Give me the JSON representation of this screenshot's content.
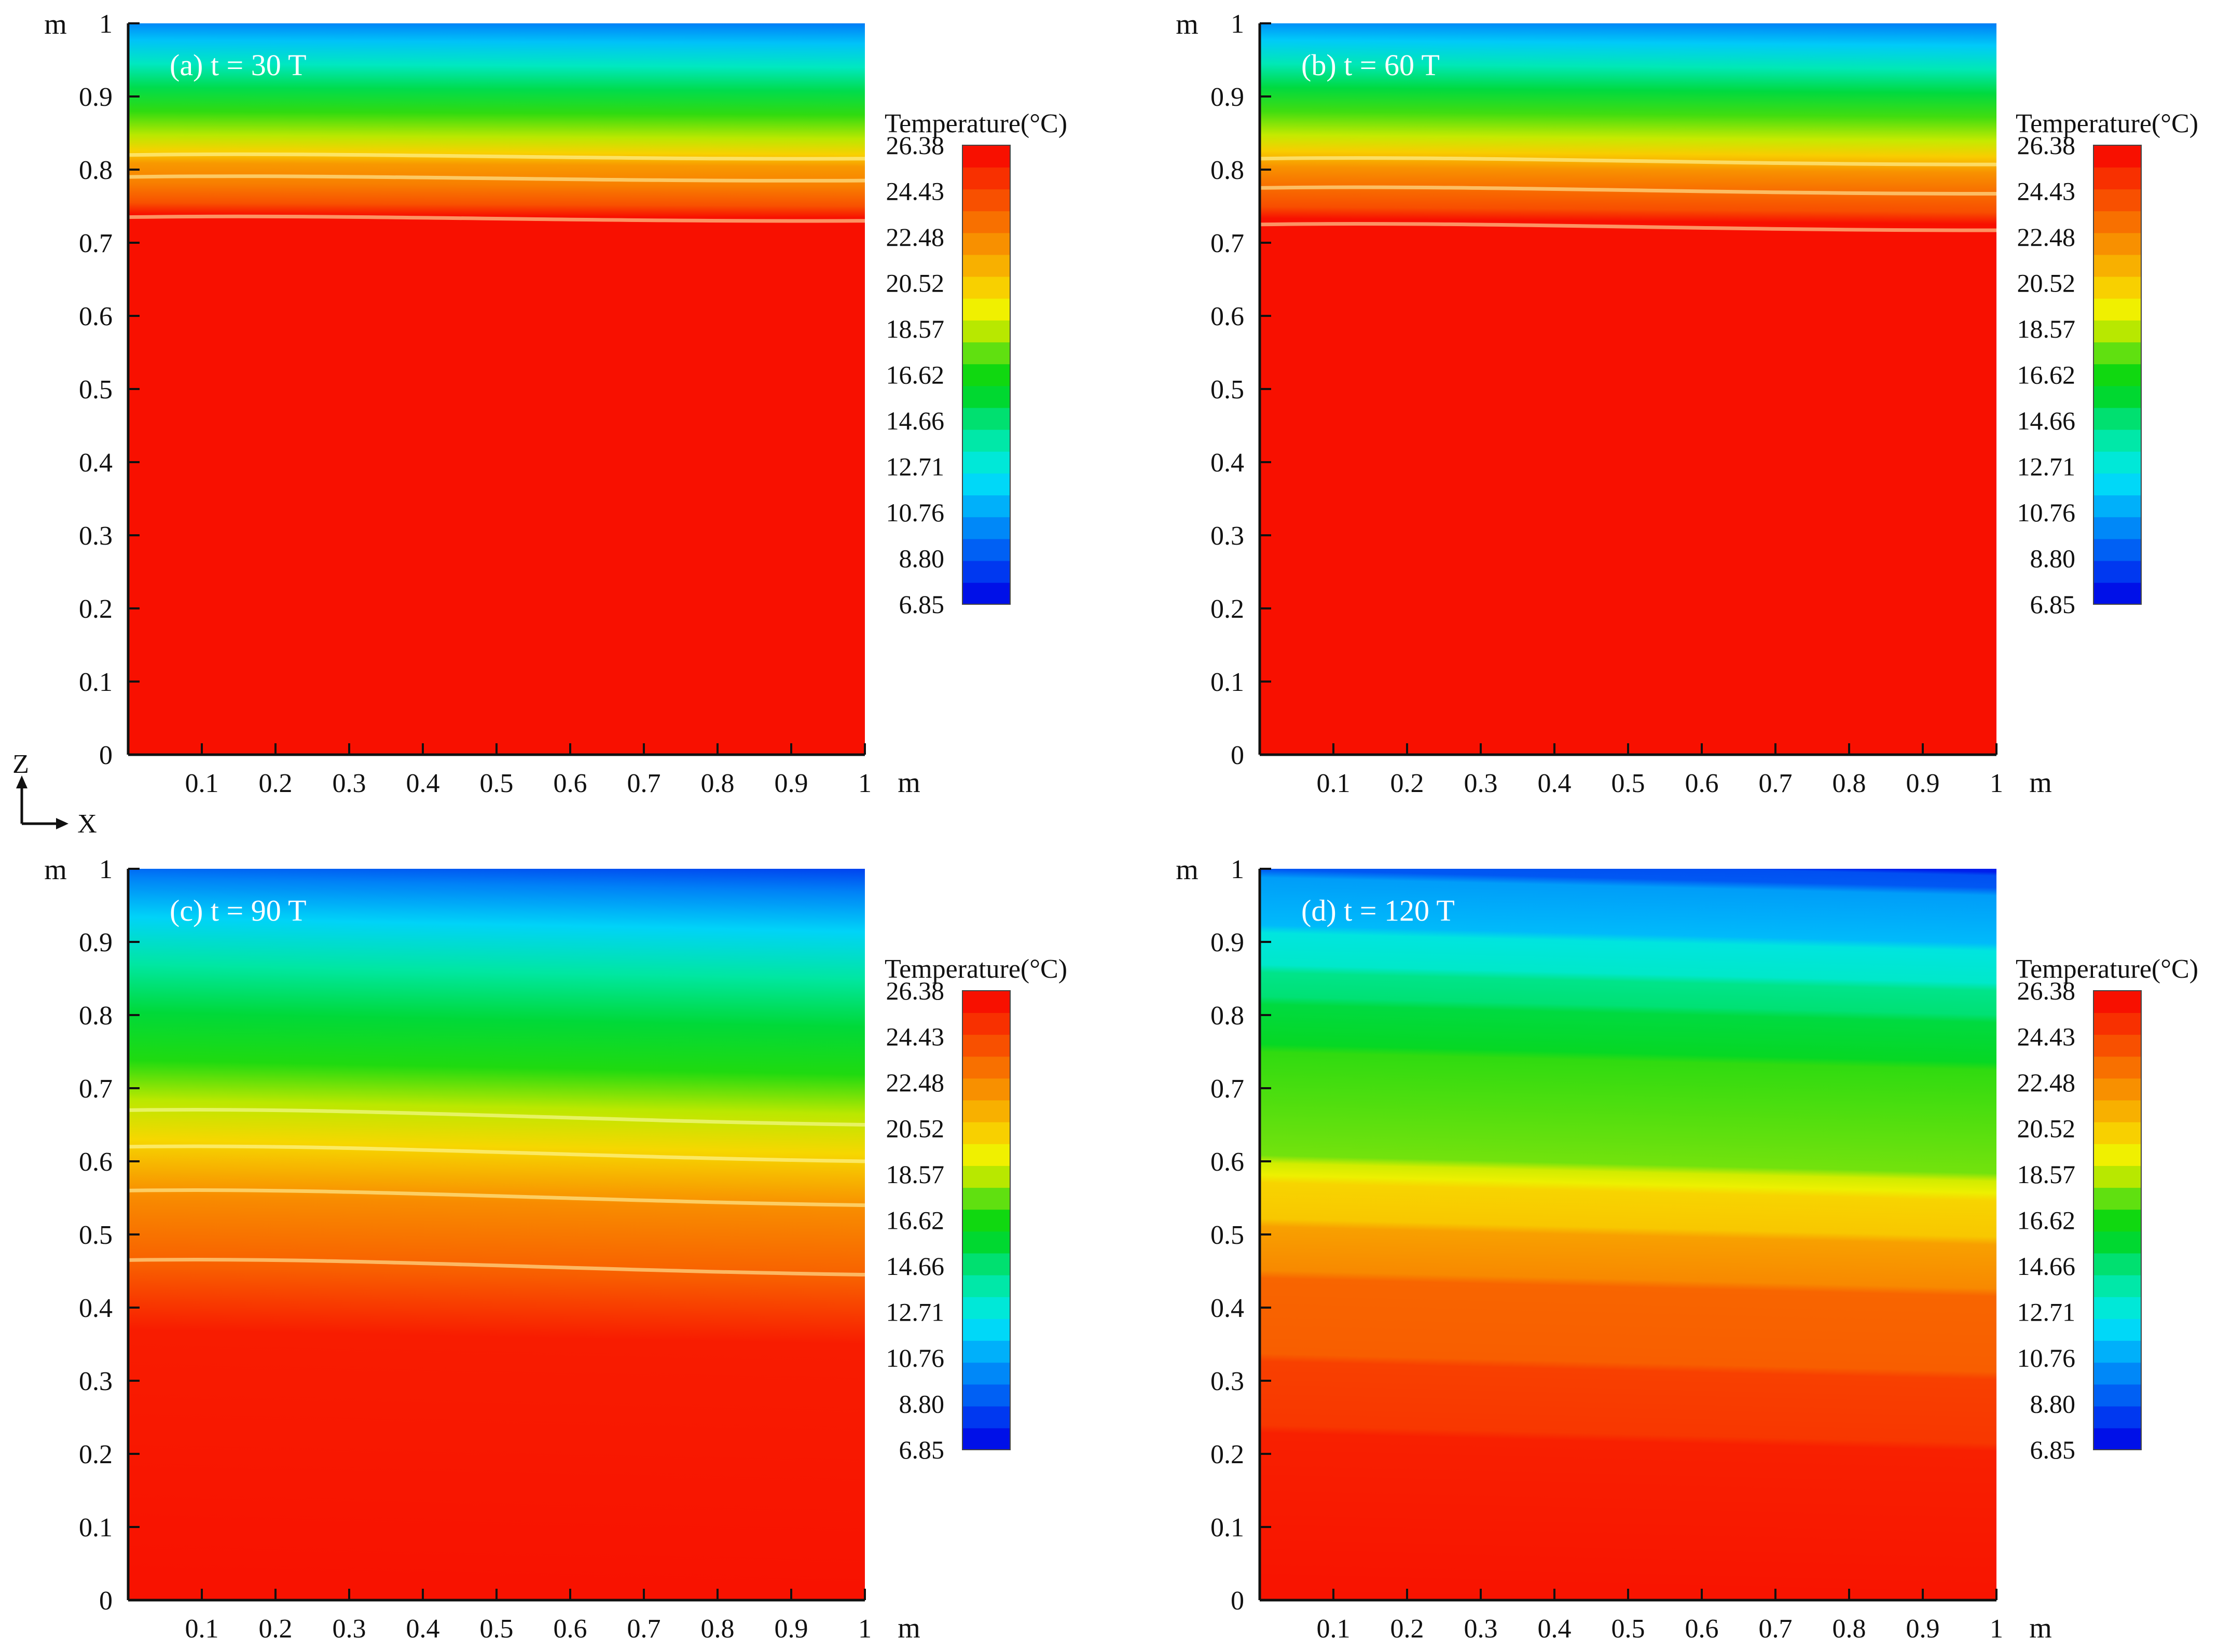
{
  "figure": {
    "axis_indicator": {
      "z_label": "Z",
      "x_label": "X"
    },
    "colors": {
      "scale": [
        "#0010e8",
        "#0038f0",
        "#0060f4",
        "#0088f8",
        "#00b0fa",
        "#00d8f8",
        "#00e8d8",
        "#00e8a8",
        "#00e070",
        "#00d830",
        "#10d810",
        "#60e010",
        "#b8e800",
        "#f0f000",
        "#f8d000",
        "#f8b000",
        "#f89000",
        "#f87000",
        "#f85000",
        "#f83000",
        "#f81000"
      ]
    }
  },
  "chart_data": [
    {
      "type": "heatmap",
      "label": "(a) t = 30 T",
      "x_ticks": [
        "0.1",
        "0.2",
        "0.3",
        "0.4",
        "0.5",
        "0.6",
        "0.7",
        "0.8",
        "0.9",
        "1"
      ],
      "y_ticks": [
        "0",
        "0.1",
        "0.2",
        "0.3",
        "0.4",
        "0.5",
        "0.6",
        "0.7",
        "0.8",
        "0.9",
        "1"
      ],
      "x_origin_label": "0",
      "x_unit": "m",
      "y_unit": "m",
      "xlim": [
        0,
        1
      ],
      "ylim": [
        0,
        1
      ],
      "colorbar": {
        "title": "Temperature(°C)",
        "labels": [
          "26.38",
          "24.43",
          "22.48",
          "20.52",
          "18.57",
          "16.62",
          "14.66",
          "12.71",
          "10.76",
          "8.80",
          "6.85"
        ],
        "range": [
          6.85,
          26.38
        ]
      },
      "profile": [
        [
          0.0,
          26.38
        ],
        [
          0.72,
          26.38
        ],
        [
          0.735,
          24.4
        ],
        [
          0.76,
          23.0
        ],
        [
          0.785,
          22.2
        ],
        [
          0.8,
          20.5
        ],
        [
          0.82,
          18.6
        ],
        [
          0.85,
          17.0
        ],
        [
          0.88,
          15.2
        ],
        [
          0.91,
          13.2
        ],
        [
          0.94,
          11.2
        ],
        [
          0.97,
          9.2
        ],
        [
          1.0,
          7.0
        ]
      ],
      "isolines": [
        0.735,
        0.79,
        0.82
      ],
      "tilt": 0.005
    },
    {
      "type": "heatmap",
      "label": "(b) t = 60 T",
      "x_ticks": [
        "0.1",
        "0.2",
        "0.3",
        "0.4",
        "0.5",
        "0.6",
        "0.7",
        "0.8",
        "0.9",
        "1"
      ],
      "y_ticks": [
        "0",
        "0.1",
        "0.2",
        "0.3",
        "0.4",
        "0.5",
        "0.6",
        "0.7",
        "0.8",
        "0.9",
        "1"
      ],
      "x_origin_label": "0",
      "x_unit": "m",
      "y_unit": "m",
      "xlim": [
        0,
        1
      ],
      "ylim": [
        0,
        1
      ],
      "colorbar": {
        "title": "Temperature(°C)",
        "labels": [
          "26.38",
          "24.43",
          "22.48",
          "20.52",
          "18.57",
          "16.62",
          "14.66",
          "12.71",
          "10.76",
          "8.80",
          "6.85"
        ],
        "range": [
          6.85,
          26.38
        ]
      },
      "profile": [
        [
          0.0,
          26.38
        ],
        [
          0.715,
          26.38
        ],
        [
          0.73,
          24.5
        ],
        [
          0.76,
          23.3
        ],
        [
          0.78,
          22.4
        ],
        [
          0.8,
          20.6
        ],
        [
          0.82,
          18.8
        ],
        [
          0.85,
          17.2
        ],
        [
          0.88,
          15.4
        ],
        [
          0.91,
          13.4
        ],
        [
          0.94,
          11.4
        ],
        [
          0.97,
          9.4
        ],
        [
          1.0,
          7.2
        ]
      ],
      "isolines": [
        0.725,
        0.775,
        0.815
      ],
      "tilt": 0.008
    },
    {
      "type": "heatmap",
      "label": "(c) t = 90 T",
      "x_ticks": [
        "0.1",
        "0.2",
        "0.3",
        "0.4",
        "0.5",
        "0.6",
        "0.7",
        "0.8",
        "0.9",
        "1"
      ],
      "y_ticks": [
        "0",
        "0.1",
        "0.2",
        "0.3",
        "0.4",
        "0.5",
        "0.6",
        "0.7",
        "0.8",
        "0.9",
        "1"
      ],
      "x_origin_label": "0",
      "x_unit": "m",
      "y_unit": "m",
      "xlim": [
        0,
        1
      ],
      "ylim": [
        0,
        1
      ],
      "colorbar": {
        "title": "Temperature(°C)",
        "labels": [
          "26.38",
          "24.43",
          "22.48",
          "20.52",
          "18.57",
          "16.62",
          "14.66",
          "12.71",
          "10.76",
          "8.80",
          "6.85"
        ],
        "range": [
          6.85,
          26.38
        ]
      },
      "profile": [
        [
          0.0,
          26.38
        ],
        [
          0.38,
          26.0
        ],
        [
          0.46,
          24.0
        ],
        [
          0.55,
          22.6
        ],
        [
          0.62,
          20.3
        ],
        [
          0.67,
          18.6
        ],
        [
          0.72,
          16.8
        ],
        [
          0.78,
          15.5
        ],
        [
          0.84,
          13.8
        ],
        [
          0.9,
          11.6
        ],
        [
          0.95,
          9.6
        ],
        [
          1.0,
          7.0
        ]
      ],
      "isolines": [
        0.465,
        0.56,
        0.62,
        0.67
      ],
      "tilt": 0.02
    },
    {
      "type": "heatmap",
      "label": "(d) t = 120 T",
      "x_ticks": [
        "0.1",
        "0.2",
        "0.3",
        "0.4",
        "0.5",
        "0.6",
        "0.7",
        "0.8",
        "0.9",
        "1"
      ],
      "y_ticks": [
        "0",
        "0.1",
        "0.2",
        "0.3",
        "0.4",
        "0.5",
        "0.6",
        "0.7",
        "0.8",
        "0.9",
        "1"
      ],
      "x_origin_label": "0",
      "x_unit": "m",
      "y_unit": "m",
      "xlim": [
        0,
        1
      ],
      "ylim": [
        0,
        1
      ],
      "colorbar": {
        "title": "Temperature(°C)",
        "labels": [
          "26.38",
          "24.43",
          "22.48",
          "20.52",
          "18.57",
          "16.62",
          "14.66",
          "12.71",
          "10.76",
          "8.80",
          "6.85"
        ],
        "range": [
          6.85,
          26.38
        ]
      },
      "profile": [
        [
          0.0,
          26.38
        ],
        [
          0.25,
          25.9
        ],
        [
          0.26,
          25.2
        ],
        [
          0.34,
          24.9
        ],
        [
          0.35,
          24.0
        ],
        [
          0.445,
          23.8
        ],
        [
          0.455,
          22.7
        ],
        [
          0.51,
          22.0
        ],
        [
          0.52,
          20.8
        ],
        [
          0.565,
          20.4
        ],
        [
          0.575,
          19.5
        ],
        [
          0.59,
          19.0
        ],
        [
          0.6,
          17.8
        ],
        [
          0.73,
          17.0
        ],
        [
          0.74,
          16.0
        ],
        [
          0.79,
          15.4
        ],
        [
          0.8,
          14.6
        ],
        [
          0.83,
          14.2
        ],
        [
          0.84,
          13.0
        ],
        [
          0.88,
          12.5
        ],
        [
          0.89,
          11.0
        ],
        [
          0.95,
          10.3
        ],
        [
          0.96,
          8.6
        ],
        [
          0.975,
          8.4
        ],
        [
          0.98,
          7.2
        ],
        [
          1.0,
          7.0
        ]
      ],
      "isolines": [],
      "tilt": 0.025,
      "banded": true
    }
  ]
}
